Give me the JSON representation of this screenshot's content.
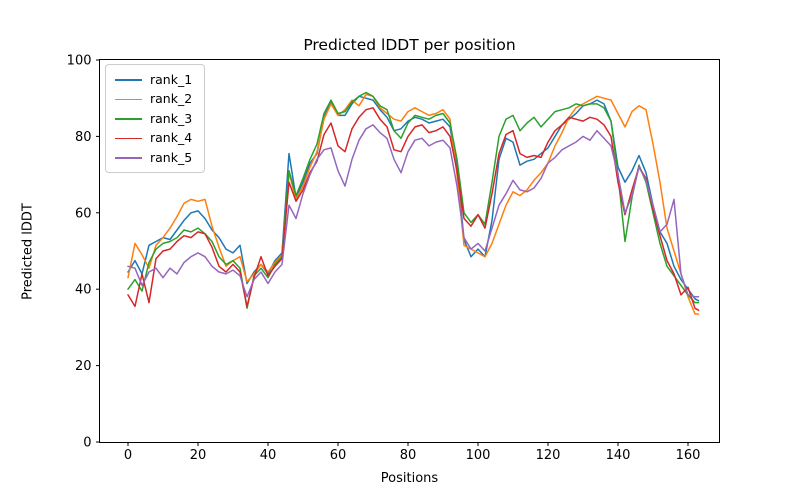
{
  "figure": {
    "title": "Predicted lDDT per position",
    "xlabel": "Positions",
    "ylabel": "Predicted lDDT"
  },
  "chart_data": {
    "type": "line",
    "title": "Predicted lDDT per position",
    "xlabel": "Positions",
    "ylabel": "Predicted lDDT",
    "xlim": [
      -8,
      171
    ],
    "ylim": [
      0,
      100
    ],
    "xticks": [
      0,
      20,
      40,
      60,
      80,
      100,
      120,
      140,
      160
    ],
    "yticks": [
      0,
      20,
      40,
      60,
      80,
      100
    ],
    "grid": false,
    "legend_position": "upper left",
    "x": [
      0,
      2,
      4,
      6,
      8,
      10,
      12,
      14,
      16,
      18,
      20,
      22,
      24,
      26,
      28,
      30,
      32,
      34,
      36,
      38,
      40,
      42,
      44,
      46,
      48,
      50,
      52,
      54,
      56,
      58,
      60,
      62,
      64,
      66,
      68,
      70,
      72,
      74,
      76,
      78,
      80,
      82,
      84,
      86,
      88,
      90,
      92,
      94,
      96,
      98,
      100,
      102,
      104,
      106,
      108,
      110,
      112,
      114,
      116,
      118,
      120,
      122,
      124,
      126,
      128,
      130,
      132,
      134,
      136,
      138,
      140,
      142,
      144,
      146,
      148,
      150,
      152,
      154,
      156,
      158,
      160,
      162,
      163
    ],
    "series": [
      {
        "name": "rank_1",
        "color": "#1f77b4",
        "values": [
          44.5,
          47.5,
          44,
          51.5,
          52.5,
          53.5,
          53,
          55.5,
          58,
          60,
          60.5,
          58.5,
          55.5,
          53.5,
          50.5,
          49.5,
          51.5,
          41.5,
          44.5,
          46.5,
          44,
          47.5,
          49.5,
          75.5,
          64,
          68,
          73,
          75.5,
          85,
          89,
          85.5,
          85.5,
          88.5,
          90.5,
          90,
          89.5,
          87,
          85,
          81.5,
          82,
          84,
          85,
          84.5,
          83.5,
          84,
          84.5,
          82.5,
          72,
          53,
          48.5,
          50.5,
          48.5,
          58,
          74,
          79.5,
          78.5,
          72.5,
          73.5,
          74,
          75.5,
          77,
          80,
          83,
          84.5,
          86,
          88,
          88.5,
          89.5,
          88.5,
          84,
          72,
          68,
          71,
          75,
          70.5,
          62,
          55,
          52,
          46,
          42.5,
          40,
          37.5,
          37
        ]
      },
      {
        "name": "rank_2",
        "color": "#ff7f0e",
        "values": [
          43,
          52,
          49,
          45.5,
          51.5,
          53.5,
          56,
          59,
          62.5,
          63.5,
          63,
          63.5,
          56.5,
          51,
          46,
          47.5,
          48.5,
          42,
          44,
          46.5,
          44.5,
          47,
          49,
          70.5,
          63.5,
          67,
          72,
          76,
          84.5,
          88.5,
          85.5,
          87,
          89.5,
          88,
          91,
          90.5,
          87.5,
          86,
          84.5,
          84,
          86.5,
          87.5,
          86.5,
          85.5,
          86,
          87,
          84.5,
          70,
          51.5,
          50.5,
          49.5,
          48.5,
          52,
          57,
          62,
          65.5,
          64.5,
          66,
          68.5,
          70.5,
          73,
          77.5,
          81,
          85,
          87.5,
          88.5,
          89.5,
          90.5,
          90,
          89.5,
          86,
          82.5,
          86.5,
          88,
          87,
          78,
          68,
          56,
          50,
          44,
          38,
          33.5,
          33.5
        ]
      },
      {
        "name": "rank_3",
        "color": "#2ca02c",
        "values": [
          40,
          42.5,
          39.5,
          47,
          50.5,
          52,
          52.5,
          53.5,
          55.5,
          55,
          56,
          54.5,
          52.5,
          48.5,
          46.5,
          47.5,
          45.5,
          35,
          43.5,
          45.5,
          43,
          46.5,
          48.5,
          71,
          64.5,
          69,
          74,
          78,
          86,
          89.5,
          86,
          86.5,
          89,
          90.5,
          91.5,
          90.5,
          88,
          87,
          81.5,
          79.5,
          83.5,
          85.5,
          85,
          84.5,
          85.5,
          86,
          83.5,
          74,
          60,
          57.5,
          59.5,
          57,
          68,
          80,
          84.5,
          85.5,
          81.5,
          83.5,
          85,
          82.5,
          84.5,
          86.5,
          87,
          87.5,
          88.5,
          88,
          88.5,
          88.5,
          87.5,
          84,
          70,
          52.5,
          64,
          72.5,
          68,
          60,
          52,
          46,
          43.5,
          41,
          38.5,
          36.5,
          36.5
        ]
      },
      {
        "name": "rank_4",
        "color": "#d62728",
        "values": [
          38.5,
          35.5,
          44,
          36.5,
          48,
          50,
          50.5,
          52.5,
          54,
          53.5,
          55,
          54.5,
          51,
          46,
          44.5,
          46.5,
          44.5,
          35.5,
          43,
          48.5,
          43.5,
          46,
          48,
          68,
          63,
          66,
          70.5,
          73.5,
          80.5,
          83.5,
          77.5,
          76,
          82,
          85,
          87,
          87.5,
          84.5,
          82.5,
          76.5,
          76,
          80,
          82.5,
          83,
          81,
          81.5,
          82.5,
          80,
          71,
          58.5,
          56.5,
          59.5,
          56,
          65,
          75.5,
          80.5,
          81.5,
          75.5,
          74.5,
          75,
          74.5,
          78.5,
          81.5,
          83,
          85,
          84.5,
          84,
          85,
          84.5,
          83,
          80,
          68,
          59.5,
          66,
          72,
          69,
          61,
          54,
          47.5,
          44,
          38.5,
          40.5,
          35,
          34.5
        ]
      },
      {
        "name": "rank_5",
        "color": "#9467bd",
        "values": [
          46,
          45.5,
          41,
          44.5,
          45.5,
          43,
          45.5,
          44,
          47,
          48.5,
          49.5,
          48.5,
          46,
          44.5,
          44,
          45,
          43.5,
          38,
          42.5,
          44.5,
          41.5,
          44.5,
          46.5,
          62,
          58.5,
          65,
          70,
          74,
          76.5,
          77,
          71,
          67,
          74,
          79,
          82,
          83,
          81,
          79.5,
          74,
          70.5,
          76,
          79,
          79.5,
          77.5,
          78.5,
          79,
          77,
          67,
          53.5,
          50.5,
          52,
          50,
          56,
          62,
          65,
          68.5,
          66,
          65.5,
          66.5,
          69,
          73,
          74.5,
          76.5,
          77.5,
          78.5,
          80,
          79,
          81.5,
          79.5,
          77.5,
          70,
          60,
          64.5,
          72,
          68.5,
          62,
          55,
          57,
          63.5,
          44,
          38.5,
          38,
          38
        ]
      }
    ]
  }
}
